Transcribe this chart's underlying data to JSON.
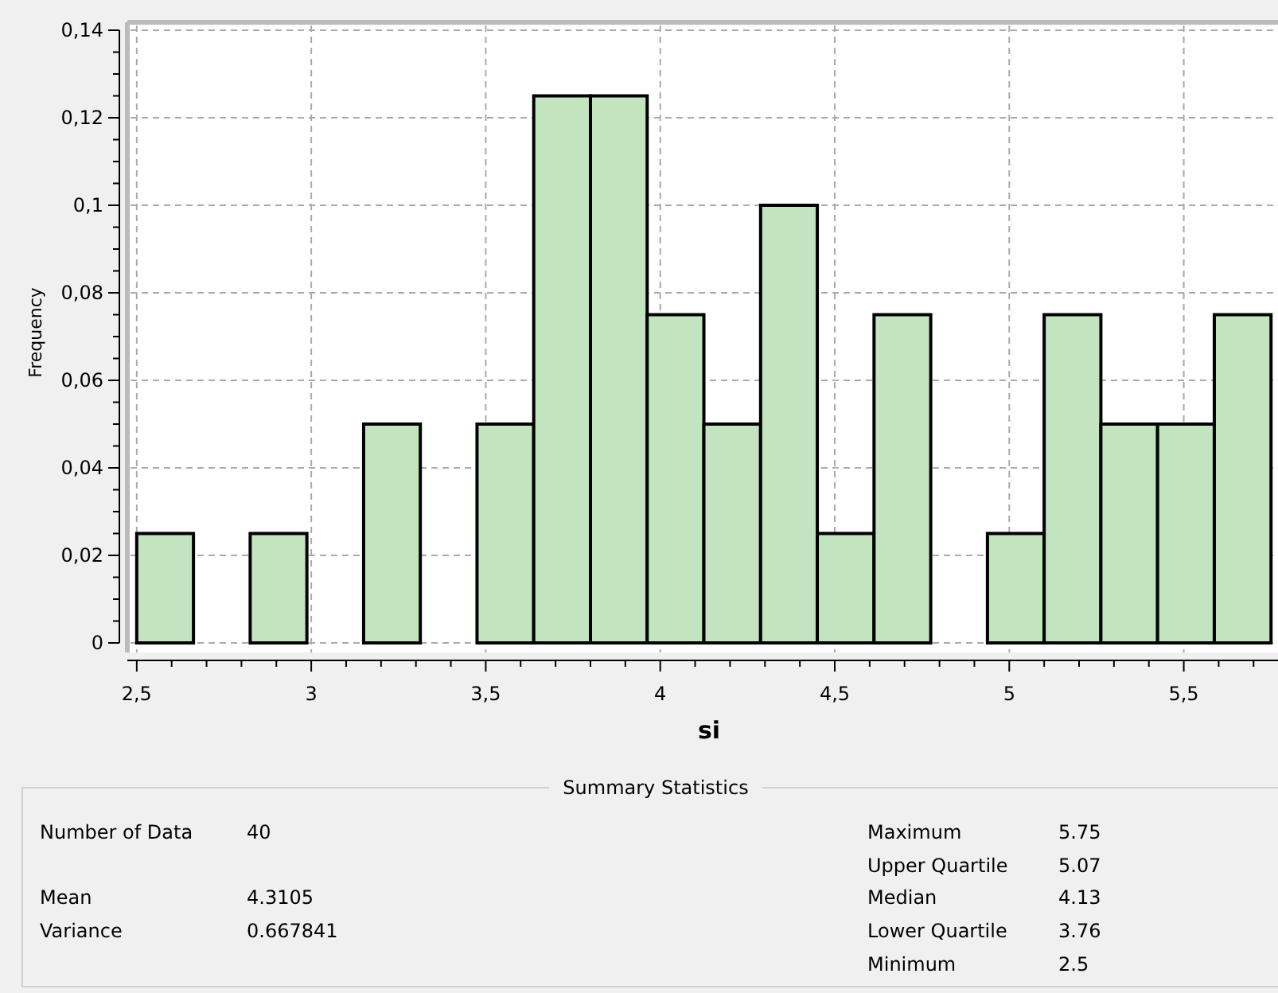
{
  "chart_data": {
    "type": "histogram",
    "xlabel": "si",
    "ylabel": "Frequency",
    "bins": [
      2.5,
      2.6625,
      2.825,
      2.9875,
      3.15,
      3.3125,
      3.475,
      3.6375,
      3.8,
      3.9625,
      4.125,
      4.2875,
      4.45,
      4.6125,
      4.775,
      4.9375,
      5.1,
      5.2625,
      5.425,
      5.5875,
      5.75
    ],
    "values": [
      0.025,
      0,
      0.025,
      0,
      0.05,
      0,
      0.05,
      0.125,
      0.125,
      0.075,
      0.05,
      0.1,
      0.025,
      0.075,
      0,
      0.025,
      0.075,
      0.05,
      0.05,
      0.075
    ],
    "color": "#c2e5c0",
    "xlim": [
      2.473,
      5.77
    ],
    "ylim": [
      0,
      0.14
    ],
    "xticks": [
      {
        "value": 2.5,
        "label": "2,5"
      },
      {
        "value": 2.6,
        "label": null
      },
      {
        "value": 2.7,
        "label": null
      },
      {
        "value": 2.8,
        "label": null
      },
      {
        "value": 2.9,
        "label": null
      },
      3,
      {
        "value": 3.1,
        "label": null
      },
      {
        "value": 3.2,
        "label": null
      },
      {
        "value": 3.3,
        "label": null
      },
      {
        "value": 3.4,
        "label": null
      },
      {
        "value": 3.5,
        "label": "3,5"
      },
      {
        "value": 3.6,
        "label": null
      },
      {
        "value": 3.7,
        "label": null
      },
      {
        "value": 3.8,
        "label": null
      },
      {
        "value": 3.9,
        "label": null
      },
      4,
      {
        "value": 4.1,
        "label": null
      },
      {
        "value": 4.2,
        "label": null
      },
      {
        "value": 4.3,
        "label": null
      },
      {
        "value": 4.4,
        "label": null
      },
      {
        "value": 4.5,
        "label": "4,5"
      },
      {
        "value": 4.6,
        "label": null
      },
      {
        "value": 4.7,
        "label": null
      },
      {
        "value": 4.8,
        "label": null
      },
      {
        "value": 4.9,
        "label": null
      },
      5,
      {
        "value": 5.1,
        "label": null
      },
      {
        "value": 5.2,
        "label": null
      },
      {
        "value": 5.3,
        "label": null
      },
      {
        "value": 5.4,
        "label": null
      },
      {
        "value": 5.5,
        "label": "5,5"
      },
      {
        "value": 5.6,
        "label": null
      },
      {
        "value": 5.7,
        "label": null
      }
    ],
    "yticks": [
      0,
      {
        "value": 0.005,
        "label": null
      },
      {
        "value": 0.01,
        "label": null
      },
      {
        "value": 0.015,
        "label": null
      },
      {
        "value": 0.02,
        "label": "0,02"
      },
      {
        "value": 0.025,
        "label": null
      },
      {
        "value": 0.03,
        "label": null
      },
      {
        "value": 0.035,
        "label": null
      },
      {
        "value": 0.04,
        "label": "0,04"
      },
      {
        "value": 0.045,
        "label": null
      },
      {
        "value": 0.05,
        "label": null
      },
      {
        "value": 0.055,
        "label": null
      },
      {
        "value": 0.06,
        "label": "0,06"
      },
      {
        "value": 0.065,
        "label": null
      },
      {
        "value": 0.07,
        "label": null
      },
      {
        "value": 0.075,
        "label": null
      },
      {
        "value": 0.08,
        "label": "0,08"
      },
      {
        "value": 0.085,
        "label": null
      },
      {
        "value": 0.09,
        "label": null
      },
      {
        "value": 0.095,
        "label": null
      },
      {
        "value": 0.1,
        "label": "0,1"
      },
      {
        "value": 0.105,
        "label": null
      },
      {
        "value": 0.11,
        "label": null
      },
      {
        "value": 0.115,
        "label": null
      },
      {
        "value": 0.12,
        "label": "0,12"
      },
      {
        "value": 0.125,
        "label": null
      },
      {
        "value": 0.13,
        "label": null
      },
      {
        "value": 0.135,
        "label": null
      },
      {
        "value": 0.14,
        "label": "0,14"
      }
    ],
    "grid": true,
    "line_style": "dashed",
    "annotations": [
      "Summary Statistics",
      "Number of Data",
      "40",
      "Mean",
      "4.3105",
      "Variance",
      "0.667841",
      "Maximum",
      "5.75",
      "Upper Quartile",
      "5.07",
      "Median",
      "4.13",
      "Lower Quartile",
      "3.76",
      "Minimum",
      "2.5"
    ]
  }
}
